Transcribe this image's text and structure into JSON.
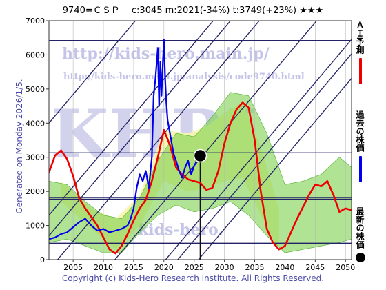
{
  "header": {
    "title": "9740=ＣＳＰ　 c:3045  m:2021(-34%)  t:3749(+23%)  ★★★"
  },
  "footer": {
    "copyright": "Copyright (c) Kids-Hero Research Institute. All Rights Reserved."
  },
  "side_text": {
    "generated": "Generated on Monday 2026/1/5."
  },
  "watermark": {
    "url1": "http://kids-hero.main.jp/",
    "url2": "http://kids-hero.main.jp/analysis/code9740.html",
    "logo": "KHRI",
    "bottom": "kids-hero."
  },
  "legend": {
    "ai": "ＡＩ予測",
    "past": "過去の株価",
    "latest": "最新の株価"
  },
  "colors": {
    "ai": "#ee0000",
    "past": "#0000ee",
    "latest": "#000000",
    "band_green": "#7bd04c",
    "band_yellow": "#f7f5b0",
    "grid": "#222266"
  },
  "chart_data": {
    "type": "line",
    "xlim": [
      2001,
      2051
    ],
    "ylim": [
      0,
      7000
    ],
    "xticks": [
      2005,
      2010,
      2015,
      2020,
      2025,
      2030,
      2035,
      2040,
      2045,
      2050
    ],
    "yticks": [
      0,
      1000,
      2000,
      3000,
      4000,
      5000,
      6000,
      7000
    ],
    "hlines": [
      6420,
      3130,
      1820,
      1770,
      480
    ],
    "vline": 2026,
    "latest": {
      "x": 2026,
      "y": 3045
    },
    "series": [
      {
        "name": "ＡＩ予測",
        "x": [
          2001,
          2002,
          2003,
          2004,
          2005,
          2006,
          2007,
          2008,
          2009,
          2010,
          2011,
          2012,
          2013,
          2014,
          2015,
          2016,
          2017,
          2018,
          2019,
          2020,
          2021,
          2022,
          2023,
          2024,
          2025,
          2026,
          2027,
          2028,
          2029,
          2030,
          2031,
          2032,
          2033,
          2034,
          2035,
          2036,
          2037,
          2038,
          2039,
          2040,
          2041,
          2042,
          2043,
          2044,
          2045,
          2046,
          2047,
          2048,
          2049,
          2050,
          2051
        ],
        "values": [
          2550,
          3050,
          3200,
          2950,
          2450,
          1800,
          1500,
          1250,
          1000,
          650,
          300,
          180,
          400,
          750,
          1150,
          1500,
          1750,
          2300,
          3000,
          3800,
          3350,
          2700,
          2500,
          2350,
          2300,
          2250,
          2050,
          2100,
          2600,
          3400,
          4000,
          4400,
          4600,
          4450,
          3500,
          2000,
          900,
          500,
          300,
          400,
          800,
          1200,
          1550,
          1900,
          2200,
          2150,
          2300,
          1900,
          1400,
          1500,
          1450
        ]
      },
      {
        "name": "過去の株価",
        "x": [
          2001,
          2002,
          2003,
          2004,
          2005,
          2006,
          2007,
          2008,
          2009,
          2010,
          2011,
          2012,
          2013,
          2014,
          2014.5,
          2015,
          2015.5,
          2016,
          2016.5,
          2017,
          2017.5,
          2018,
          2018.3,
          2018.6,
          2019,
          2019.2,
          2019.4,
          2019.6,
          2019.8,
          2020,
          2020.2,
          2020.4,
          2020.6,
          2020.8,
          2021,
          2021.3,
          2021.6,
          2022,
          2022.5,
          2023,
          2023.5,
          2024,
          2024.5,
          2025,
          2025.3,
          2025.6,
          2026
        ],
        "values": [
          600,
          650,
          750,
          800,
          950,
          1100,
          1200,
          1000,
          850,
          900,
          800,
          850,
          900,
          1000,
          1200,
          1500,
          2100,
          2500,
          2300,
          2600,
          2100,
          3000,
          4800,
          5300,
          6200,
          4500,
          5800,
          4800,
          5700,
          6450,
          5300,
          4600,
          4100,
          3900,
          3700,
          3400,
          3100,
          2900,
          2600,
          2400,
          2700,
          2900,
          2500,
          2750,
          2850,
          3200,
          3045
        ]
      }
    ],
    "bands": [
      {
        "fill": "yellow",
        "x": [
          2003,
          2008,
          2012,
          2016,
          2020,
          2024,
          2027,
          2030,
          2033,
          2036,
          2039
        ],
        "upper": [
          2300,
          1500,
          1200,
          1900,
          3800,
          3700,
          3900,
          4300,
          4600,
          3300,
          1500
        ],
        "lower": [
          1700,
          900,
          300,
          1000,
          2300,
          2000,
          2100,
          2300,
          2400,
          1300,
          300
        ]
      },
      {
        "fill": "green",
        "x": [
          2001,
          2004,
          2007,
          2010,
          2013,
          2016,
          2019,
          2022,
          2025,
          2028,
          2031,
          2034,
          2037,
          2040,
          2043,
          2046,
          2049,
          2051
        ],
        "upper": [
          2300,
          2200,
          1700,
          1300,
          1200,
          1800,
          2900,
          3700,
          3600,
          4200,
          4900,
          4800,
          3700,
          2200,
          2300,
          2500,
          3000,
          2700
        ],
        "lower": [
          500,
          600,
          400,
          200,
          200,
          800,
          1300,
          1600,
          1400,
          1500,
          1700,
          1300,
          700,
          200,
          300,
          400,
          500,
          600
        ]
      }
    ]
  }
}
